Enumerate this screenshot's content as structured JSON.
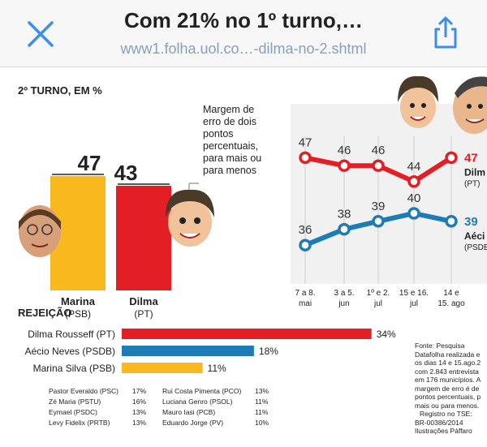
{
  "topbar": {
    "title": "Com 21% no 1º turno,…",
    "url": "www1.folha.uol.co…-dilma-no-2.shtml",
    "close_icon": "close-icon",
    "share_icon": "share-icon"
  },
  "second_round": {
    "header": "2º TURNO, EM %",
    "note": [
      "Margem de",
      "erro de dois",
      "pontos",
      "percentuais,",
      "para mais ou",
      "para menos"
    ],
    "candidates": [
      {
        "name": "Marina",
        "party": "(PSB)",
        "value": 47,
        "color": "#f8b81e"
      },
      {
        "name": "Dilma",
        "party": "(PT)",
        "value": 43,
        "color": "#e31e24"
      }
    ]
  },
  "trend": {
    "dates": [
      [
        "7 a 8.",
        "mai"
      ],
      [
        "3 a 5.",
        "jun"
      ],
      [
        "1º e 2.",
        "jul"
      ],
      [
        "15 e 16.",
        "jul"
      ],
      [
        "14 e",
        "15. ago"
      ]
    ],
    "series": [
      {
        "name": "Dilm",
        "party": "(PT)",
        "color": "#e31e24",
        "values": [
          47,
          46,
          46,
          44,
          47
        ]
      },
      {
        "name": "Aéci",
        "party": "(PSDB",
        "color": "#1e7bb5",
        "values": [
          36,
          38,
          39,
          40,
          39
        ]
      }
    ]
  },
  "rejection": {
    "header": "REJEIÇÃO",
    "bars": [
      {
        "label": "Dilma Rousseff (PT)",
        "value": 34,
        "display": "34%",
        "color": "#e31e24"
      },
      {
        "label": "Aécio Neves (PSDB)",
        "value": 18,
        "display": "18%",
        "color": "#1e7bb5"
      },
      {
        "label": "Marina Silva (PSB)",
        "value": 11,
        "display": "11%",
        "color": "#f8b81e"
      }
    ],
    "others_left": [
      {
        "name": "Pastor Everaldo (PSC)",
        "value": "17%"
      },
      {
        "name": "Zé Maria (PSTU)",
        "value": "16%"
      },
      {
        "name": "Eymael (PSDC)",
        "value": "13%"
      },
      {
        "name": "Levy Fidelix (PRTB)",
        "value": "13%"
      }
    ],
    "others_right": [
      {
        "name": "Rui Costa Pimenta (PCO)",
        "value": "13%"
      },
      {
        "name": "Luciana Genro (PSOL)",
        "value": "11%"
      },
      {
        "name": "Mauro Iasi (PCB)",
        "value": "11%"
      },
      {
        "name": "Eduardo Jorge (PV)",
        "value": "10%"
      }
    ],
    "source": [
      "Fonte: Pesquisa",
      "Datafolha realizada e",
      "os dias 14 e 15.ago.2",
      "com 2.843 entrevista",
      "em 176 municípios. A",
      "margem de erro é de",
      "pontos percentuais, p",
      "mais ou para menos.",
      "Registro no TSE:",
      "BR-00386/2014",
      "Ilustrações Páffaro"
    ]
  },
  "colors": {
    "red": "#e31e24",
    "blue": "#1e7bb5",
    "yellow": "#f8b81e",
    "url": "#8aa0b6",
    "icon": "#3d8eea"
  }
}
